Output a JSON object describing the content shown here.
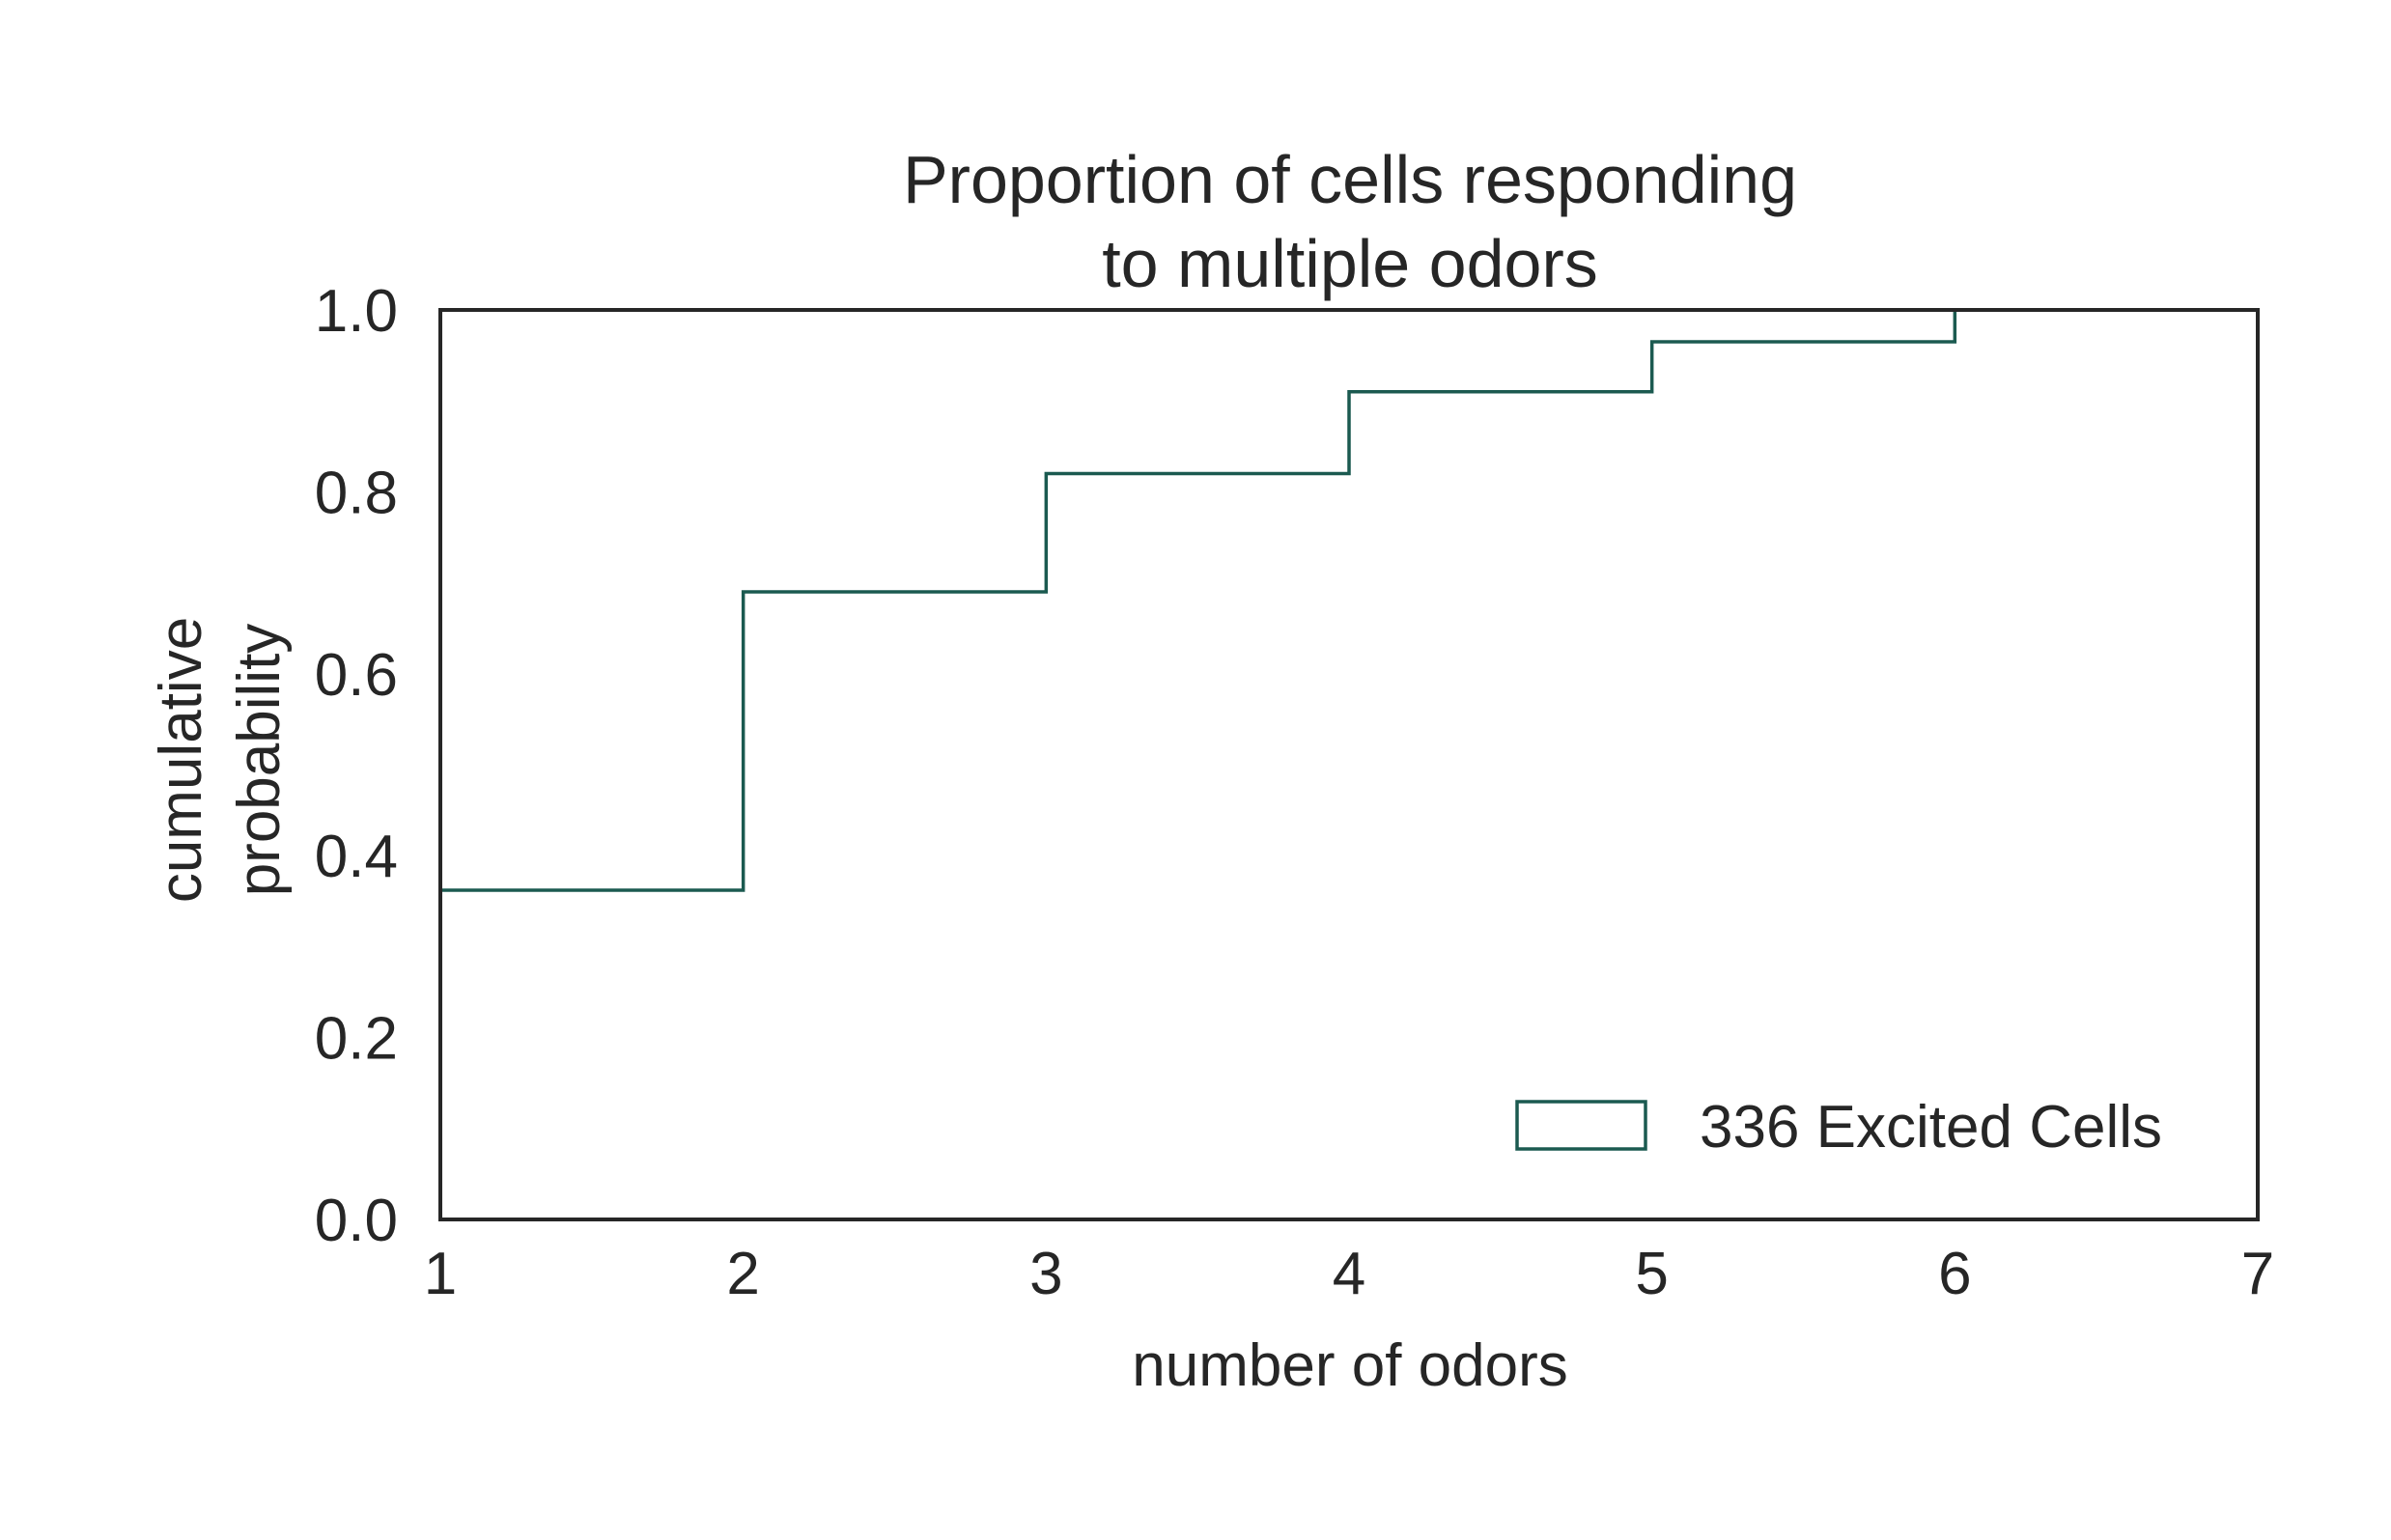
{
  "chart_data": {
    "type": "line",
    "subtype": "step-cdf",
    "title": [
      "Proportion of cells responding",
      "to multiple odors"
    ],
    "xlabel": "number of odors",
    "ylabel": [
      "cumulative",
      "probability"
    ],
    "xlim": [
      1,
      7
    ],
    "ylim": [
      0.0,
      1.0
    ],
    "xticks": [
      1,
      2,
      3,
      4,
      5,
      6,
      7
    ],
    "xtick_labels": [
      "1",
      "2",
      "3",
      "4",
      "5",
      "6",
      "7"
    ],
    "yticks": [
      0.0,
      0.2,
      0.4,
      0.6,
      0.8,
      1.0
    ],
    "ytick_labels": [
      "0.0",
      "0.2",
      "0.4",
      "0.6",
      "0.8",
      "1.0"
    ],
    "grid": false,
    "legend_position": "lower-right",
    "series": [
      {
        "name": "336 Excited Cells",
        "color": "#1b5a50",
        "x": [
          1,
          2,
          3,
          4,
          5,
          6
        ],
        "y": [
          0.362,
          0.69,
          0.82,
          0.91,
          0.965,
          1.0
        ]
      }
    ]
  }
}
